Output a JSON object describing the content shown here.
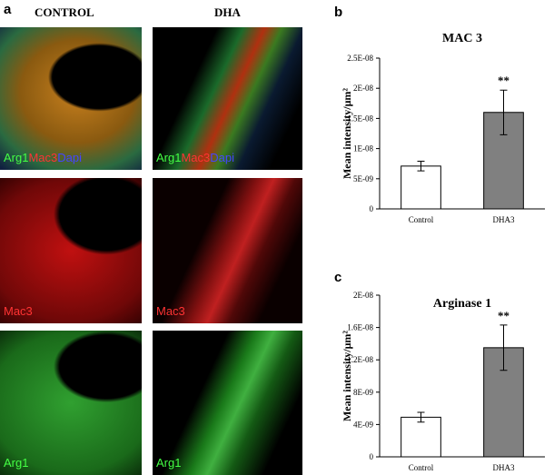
{
  "figure": {
    "panel_label": "a",
    "columns": [
      "CONTROL",
      "DHA"
    ],
    "rows": [
      {
        "labels": [
          "Arg1",
          "Mac3",
          "Dapi"
        ]
      },
      {
        "labels": [
          "Mac3"
        ]
      },
      {
        "labels": [
          "Arg1"
        ]
      }
    ]
  },
  "chart_data": [
    {
      "type": "bar",
      "panel_label": "b",
      "title": "MAC 3",
      "y_label": "Mean intensity/μm²",
      "categories": [
        "Control",
        "DHA3"
      ],
      "values": [
        7.1e-09,
        1.6e-08
      ],
      "errors": [
        8e-10,
        3.7e-09
      ],
      "significance": [
        null,
        "**"
      ],
      "colors": [
        "#ffffff",
        "#808080"
      ],
      "ylim": [
        0,
        2.5e-08
      ],
      "yticks": [
        0,
        {
          "value": 5e-09,
          "label": "5E-09"
        },
        {
          "value": 1e-08,
          "label": "1E-08"
        },
        {
          "value": 1.5e-08,
          "label": "1.5E-08"
        },
        {
          "value": 2e-08,
          "label": "2E-08"
        },
        {
          "value": 2.5e-08,
          "label": "2.5E-08"
        }
      ]
    },
    {
      "type": "bar",
      "panel_label": "c",
      "title": "Arginase 1",
      "y_label": "Mean intensity/μm²",
      "categories": [
        "Control",
        "DHA3"
      ],
      "values": [
        4.9e-09,
        1.35e-08
      ],
      "errors": [
        6e-10,
        2.8e-09
      ],
      "significance": [
        null,
        "**"
      ],
      "colors": [
        "#ffffff",
        "#808080"
      ],
      "ylim": [
        0,
        2e-08
      ],
      "yticks": [
        0,
        {
          "value": 4e-09,
          "label": "4E-09"
        },
        {
          "value": 8e-09,
          "label": "8E-09"
        },
        {
          "value": 1.2e-08,
          "label": "1.2E-08"
        },
        {
          "value": 1.6e-08,
          "label": "1.6E-08"
        },
        {
          "value": 2e-08,
          "label": "2E-08"
        }
      ]
    }
  ]
}
